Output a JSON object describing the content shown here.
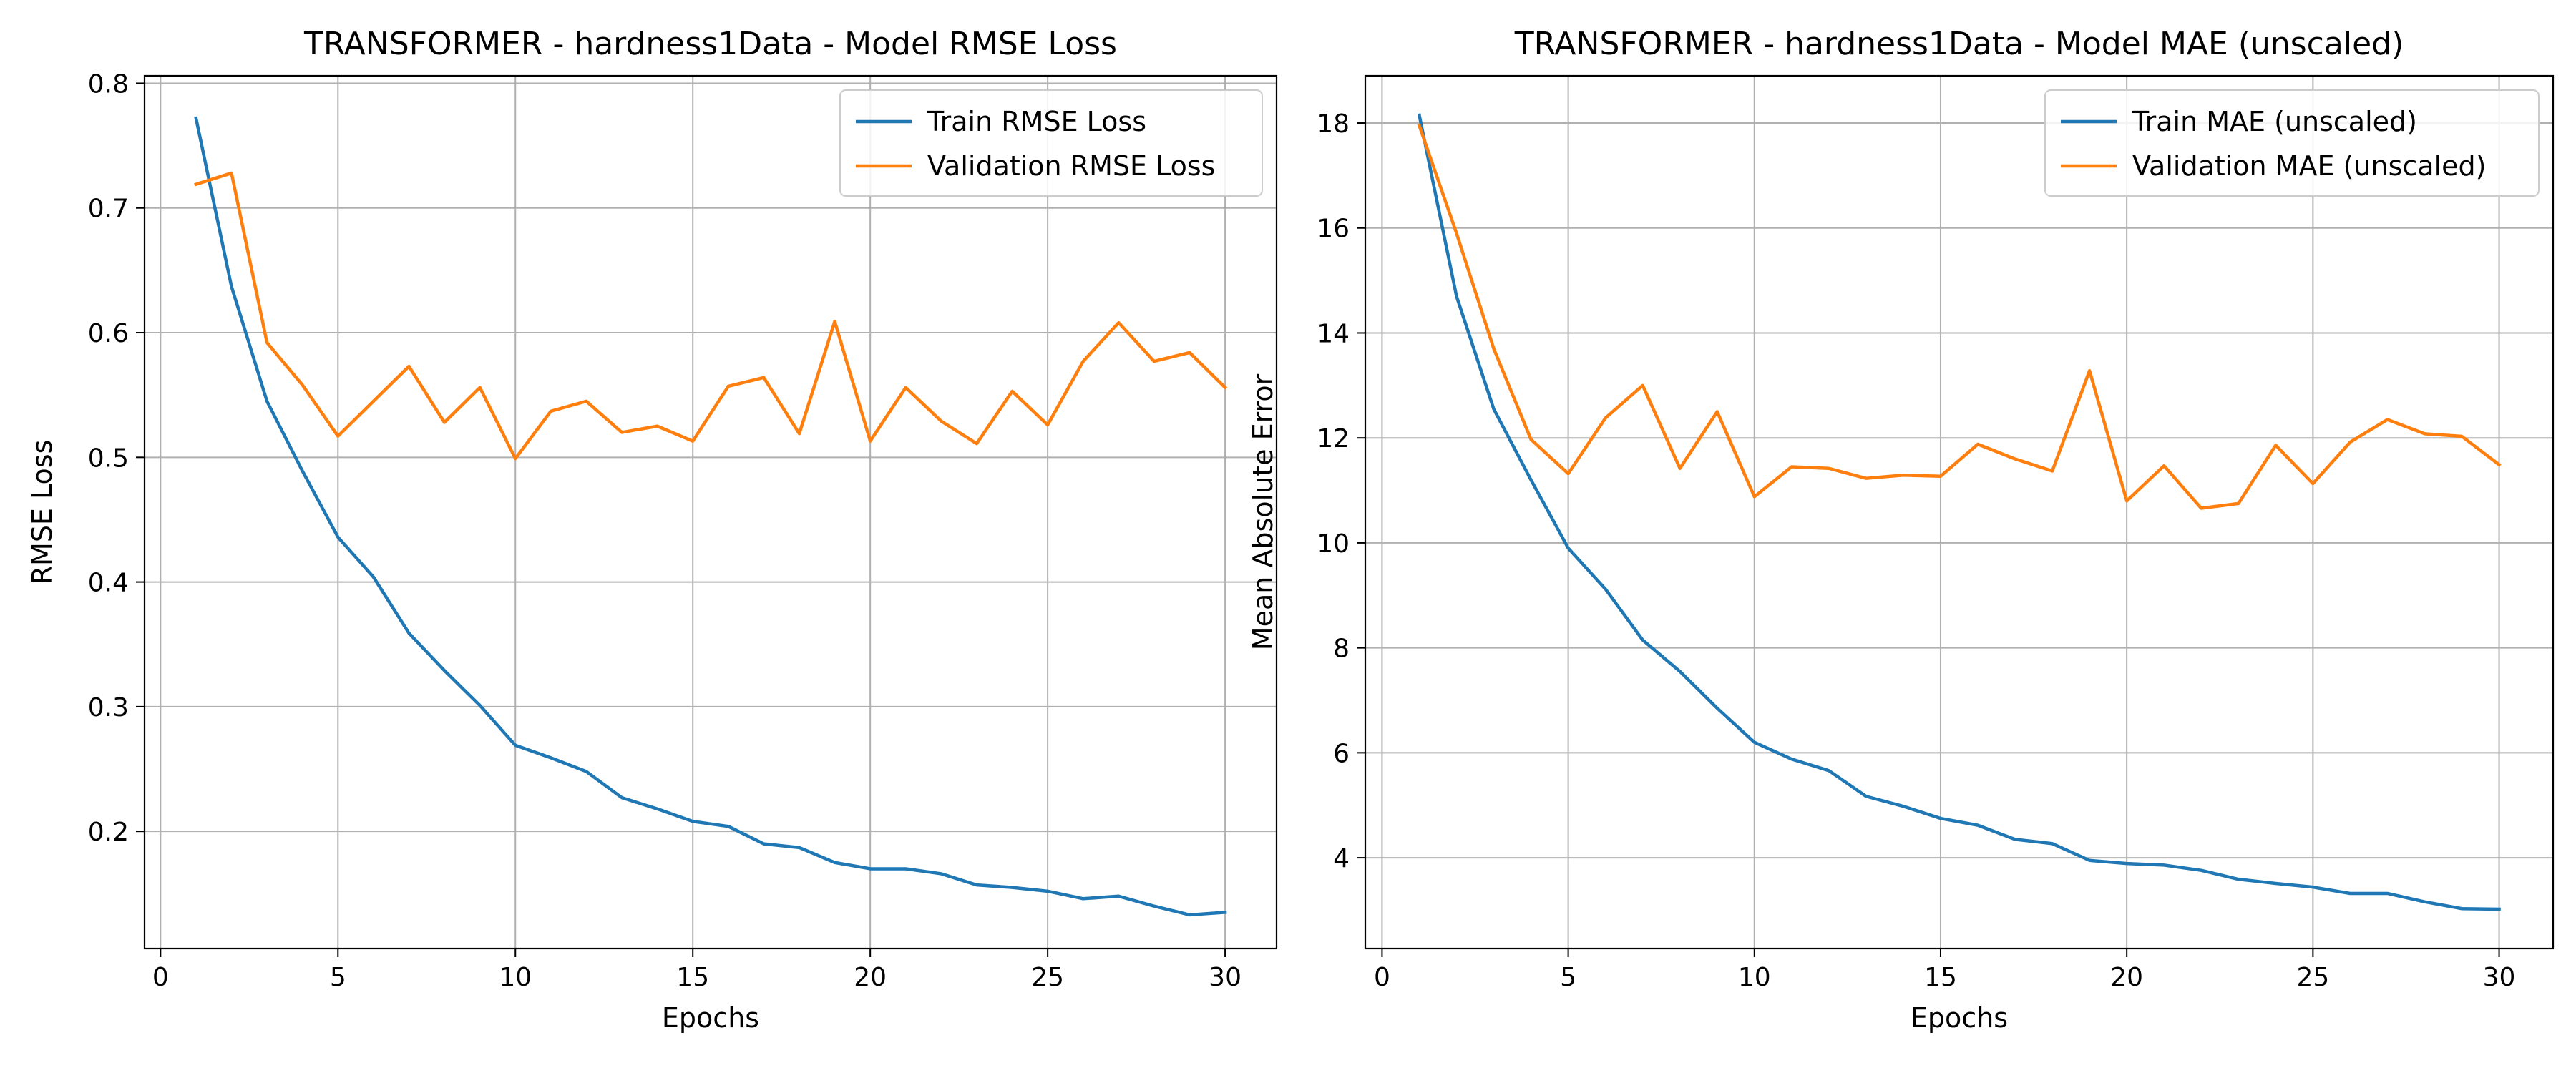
{
  "chart_data": [
    {
      "type": "line",
      "title": "TRANSFORMER - hardness1Data - Model RMSE Loss",
      "xlabel": "Epochs",
      "ylabel": "RMSE Loss",
      "xlim": [
        -0.45,
        31.45
      ],
      "ylim": [
        0.106,
        0.806
      ],
      "xticks": [
        0,
        5,
        10,
        15,
        20,
        25,
        30
      ],
      "yticks": [
        0.2,
        0.3,
        0.4,
        0.5,
        0.6,
        0.7,
        0.8
      ],
      "ytick_labels": [
        "0.2",
        "0.3",
        "0.4",
        "0.5",
        "0.6",
        "0.7",
        "0.8"
      ],
      "grid": true,
      "legend": "top-right",
      "x": [
        1,
        2,
        3,
        4,
        5,
        6,
        7,
        8,
        9,
        10,
        11,
        12,
        13,
        14,
        15,
        16,
        17,
        18,
        19,
        20,
        21,
        22,
        23,
        24,
        25,
        26,
        27,
        28,
        29,
        30
      ],
      "series": [
        {
          "name": "Train RMSE Loss",
          "color": "#1f77b4",
          "values": [
            0.772,
            0.637,
            0.545,
            0.489,
            0.436,
            0.404,
            0.359,
            0.329,
            0.301,
            0.269,
            0.259,
            0.248,
            0.227,
            0.218,
            0.208,
            0.204,
            0.19,
            0.187,
            0.175,
            0.17,
            0.17,
            0.166,
            0.157,
            0.155,
            0.152,
            0.146,
            0.148,
            0.14,
            0.133,
            0.135
          ]
        },
        {
          "name": "Validation RMSE Loss",
          "color": "#ff7f0e",
          "values": [
            0.719,
            0.728,
            0.592,
            0.558,
            0.517,
            0.545,
            0.573,
            0.528,
            0.556,
            0.499,
            0.537,
            0.545,
            0.52,
            0.525,
            0.513,
            0.557,
            0.564,
            0.519,
            0.609,
            0.513,
            0.556,
            0.529,
            0.511,
            0.553,
            0.526,
            0.577,
            0.608,
            0.577,
            0.584,
            0.556
          ]
        }
      ]
    },
    {
      "type": "line",
      "title": "TRANSFORMER - hardness1Data - Model MAE (unscaled)",
      "xlabel": "Epochs",
      "ylabel": "Mean Absolute Error",
      "xlim": [
        -0.45,
        31.45
      ],
      "ylim": [
        2.27,
        18.9
      ],
      "xticks": [
        0,
        5,
        10,
        15,
        20,
        25,
        30
      ],
      "yticks": [
        4,
        6,
        8,
        10,
        12,
        14,
        16,
        18
      ],
      "ytick_labels": [
        "4",
        "6",
        "8",
        "10",
        "12",
        "14",
        "16",
        "18"
      ],
      "grid": true,
      "legend": "top-right",
      "x": [
        1,
        2,
        3,
        4,
        5,
        6,
        7,
        8,
        9,
        10,
        11,
        12,
        13,
        14,
        15,
        16,
        17,
        18,
        19,
        20,
        21,
        22,
        23,
        24,
        25,
        26,
        27,
        28,
        29,
        30
      ],
      "series": [
        {
          "name": "Train MAE (unscaled)",
          "color": "#1f77b4",
          "values": [
            18.15,
            14.7,
            12.55,
            11.2,
            9.9,
            9.12,
            8.15,
            7.55,
            6.85,
            6.2,
            5.88,
            5.66,
            5.17,
            4.98,
            4.75,
            4.62,
            4.35,
            4.27,
            3.95,
            3.89,
            3.86,
            3.76,
            3.59,
            3.51,
            3.44,
            3.32,
            3.32,
            3.16,
            3.03,
            3.02
          ]
        },
        {
          "name": "Validation MAE (unscaled)",
          "color": "#ff7f0e",
          "values": [
            17.95,
            15.9,
            13.7,
            11.97,
            11.32,
            12.38,
            13.0,
            11.42,
            12.5,
            10.88,
            11.45,
            11.42,
            11.23,
            11.29,
            11.27,
            11.88,
            11.6,
            11.37,
            13.28,
            10.8,
            11.47,
            10.66,
            10.75,
            11.86,
            11.13,
            11.92,
            12.35,
            12.08,
            12.03,
            11.49
          ]
        }
      ]
    }
  ]
}
